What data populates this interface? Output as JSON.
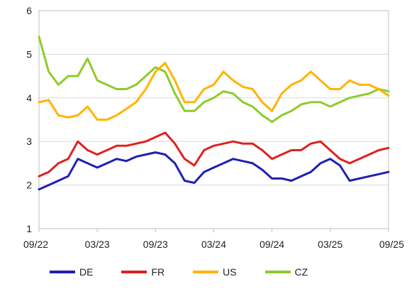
{
  "chart_data": {
    "type": "line",
    "title": "",
    "xlabel": "",
    "ylabel": "",
    "ylim": [
      1,
      6
    ],
    "yticks": [
      "1",
      "2",
      "3",
      "4",
      "5",
      "6"
    ],
    "xticks": [
      "09/22",
      "03/23",
      "09/23",
      "03/24",
      "09/24",
      "03/25",
      "09/25"
    ],
    "grid": true,
    "legend": "bottom",
    "x": [
      "09/22",
      "10/22",
      "11/22",
      "12/22",
      "01/23",
      "02/23",
      "03/23",
      "04/23",
      "05/23",
      "06/23",
      "07/23",
      "08/23",
      "09/23",
      "10/23",
      "11/23",
      "12/23",
      "01/24",
      "02/24",
      "03/24",
      "04/24",
      "05/24",
      "06/24",
      "07/24",
      "08/24",
      "09/24",
      "10/24",
      "11/24",
      "12/24",
      "01/25",
      "02/25",
      "03/25",
      "04/25",
      "05/25",
      "06/25",
      "07/25",
      "08/25",
      "09/25"
    ],
    "series": [
      {
        "name": "DE",
        "color": "#1f1fb4",
        "values": [
          1.9,
          2.0,
          2.1,
          2.2,
          2.6,
          2.5,
          2.4,
          2.5,
          2.6,
          2.55,
          2.65,
          2.7,
          2.75,
          2.7,
          2.5,
          2.1,
          2.05,
          2.3,
          2.4,
          2.5,
          2.6,
          2.55,
          2.5,
          2.35,
          2.15,
          2.15,
          2.1,
          2.2,
          2.3,
          2.5,
          2.6,
          2.45,
          2.1,
          2.15,
          2.2,
          2.25,
          2.3
        ]
      },
      {
        "name": "FR",
        "color": "#e02020",
        "values": [
          2.2,
          2.3,
          2.5,
          2.6,
          3.0,
          2.8,
          2.7,
          2.8,
          2.9,
          2.9,
          2.95,
          3.0,
          3.1,
          3.2,
          2.95,
          2.6,
          2.45,
          2.8,
          2.9,
          2.95,
          3.0,
          2.95,
          2.95,
          2.8,
          2.6,
          2.7,
          2.8,
          2.8,
          2.95,
          3.0,
          2.8,
          2.6,
          2.5,
          2.6,
          2.7,
          2.8,
          2.85
        ]
      },
      {
        "name": "US",
        "color": "#ffb400",
        "values": [
          3.9,
          3.95,
          3.6,
          3.55,
          3.6,
          3.8,
          3.5,
          3.5,
          3.6,
          3.75,
          3.9,
          4.2,
          4.6,
          4.8,
          4.4,
          3.9,
          3.9,
          4.2,
          4.3,
          4.6,
          4.4,
          4.25,
          4.2,
          3.9,
          3.7,
          4.1,
          4.3,
          4.4,
          4.6,
          4.4,
          4.2,
          4.2,
          4.4,
          4.3,
          4.3,
          4.2,
          4.05
        ]
      },
      {
        "name": "CZ",
        "color": "#8ecc2a",
        "values": [
          5.4,
          4.6,
          4.3,
          4.5,
          4.5,
          4.9,
          4.4,
          4.3,
          4.2,
          4.2,
          4.3,
          4.5,
          4.7,
          4.6,
          4.1,
          3.7,
          3.7,
          3.9,
          4.0,
          4.15,
          4.1,
          3.9,
          3.8,
          3.6,
          3.45,
          3.6,
          3.7,
          3.85,
          3.9,
          3.9,
          3.8,
          3.9,
          4.0,
          4.05,
          4.1,
          4.2,
          4.15
        ]
      }
    ]
  }
}
